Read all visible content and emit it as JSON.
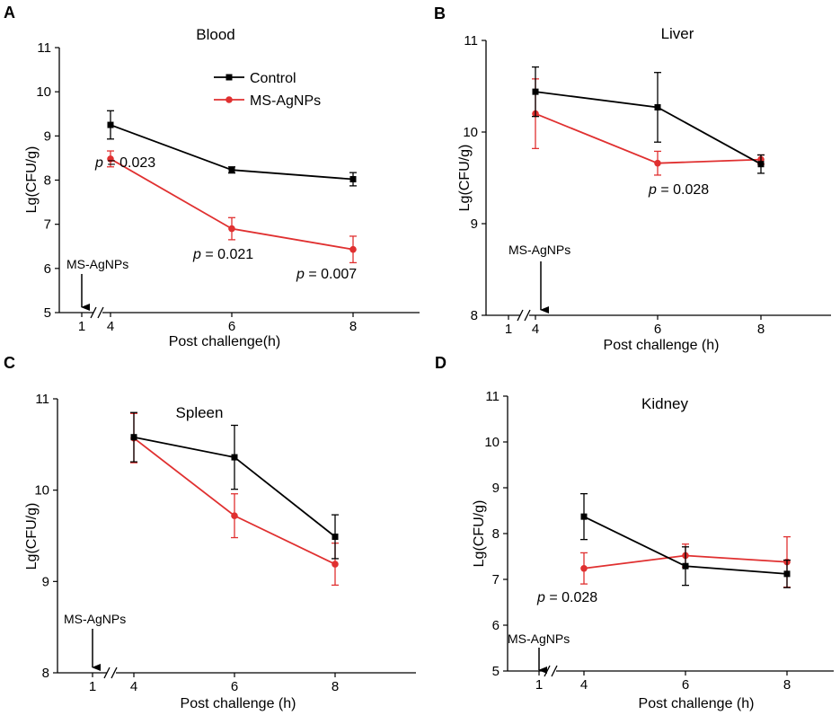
{
  "colors": {
    "control": "#000000",
    "treated": "#e03030",
    "axis": "#000000"
  },
  "legend": {
    "control": "Control",
    "treated": "MS-AgNPs"
  },
  "chart_data": [
    {
      "type": "line",
      "panel": "A",
      "title": "Blood",
      "xlabel": "Post challenge(h)",
      "ylabel": "Lg(CFU/g)",
      "ylim": [
        5,
        11
      ],
      "yticks": [
        "5",
        "6",
        "7",
        "8",
        "9",
        "10",
        "11"
      ],
      "xticks": [
        "1",
        "4",
        "6",
        "8"
      ],
      "x": [
        4,
        6,
        8
      ],
      "series": [
        {
          "name": "Control",
          "values": [
            9.25,
            8.23,
            8.02
          ],
          "errors": [
            0.32,
            0.07,
            0.15
          ]
        },
        {
          "name": "MS-AgNPs",
          "values": [
            8.48,
            6.9,
            6.43
          ],
          "errors": [
            0.18,
            0.25,
            0.3
          ]
        }
      ],
      "arrow_label": "MS-AgNPs",
      "annotations": [
        {
          "italic": "p",
          "text": " = 0.023"
        },
        {
          "italic": "p",
          "text": " = 0.021"
        },
        {
          "italic": "p",
          "text": " = 0.007"
        }
      ],
      "legend": "top-right"
    },
    {
      "type": "line",
      "panel": "B",
      "title": "Liver",
      "xlabel": "Post challenge (h)",
      "ylabel": "Lg(CFU/g)",
      "ylim": [
        8,
        11
      ],
      "yticks": [
        "8",
        "9",
        "10",
        "11"
      ],
      "xticks": [
        "1",
        "4",
        "6",
        "8"
      ],
      "x": [
        4,
        6,
        8
      ],
      "series": [
        {
          "name": "Control",
          "values": [
            10.44,
            10.27,
            9.65
          ],
          "errors": [
            0.27,
            0.38,
            0.1
          ]
        },
        {
          "name": "MS-AgNPs",
          "values": [
            10.2,
            9.66,
            9.7
          ],
          "errors": [
            0.38,
            0.13,
            0.05
          ]
        }
      ],
      "arrow_label": "MS-AgNPs",
      "annotations": [
        {
          "italic": "p",
          "text": " = 0.028"
        }
      ]
    },
    {
      "type": "line",
      "panel": "C",
      "title": "Spleen",
      "xlabel": "Post challenge (h)",
      "ylabel": "Lg(CFU/g)",
      "ylim": [
        8,
        11
      ],
      "yticks": [
        "8",
        "9",
        "10",
        "11"
      ],
      "xticks": [
        "1",
        "4",
        "6",
        "8"
      ],
      "x": [
        4,
        6,
        8
      ],
      "series": [
        {
          "name": "Control",
          "values": [
            10.58,
            10.36,
            9.49
          ],
          "errors": [
            0.27,
            0.35,
            0.24
          ]
        },
        {
          "name": "MS-AgNPs",
          "values": [
            10.57,
            9.72,
            9.19
          ],
          "errors": [
            0.27,
            0.24,
            0.23
          ]
        }
      ],
      "arrow_label": "MS-AgNPs",
      "annotations": []
    },
    {
      "type": "line",
      "panel": "D",
      "title": "Kidney",
      "xlabel": "Post challenge (h)",
      "ylabel": "Lg(CFU/g)",
      "ylim": [
        5,
        11
      ],
      "yticks": [
        "5",
        "6",
        "7",
        "8",
        "9",
        "10",
        "11"
      ],
      "xticks": [
        "1",
        "4",
        "6",
        "8"
      ],
      "x": [
        4,
        6,
        8
      ],
      "series": [
        {
          "name": "Control",
          "values": [
            8.37,
            7.29,
            7.12
          ],
          "errors": [
            0.5,
            0.42,
            0.3
          ]
        },
        {
          "name": "MS-AgNPs",
          "values": [
            7.24,
            7.52,
            7.38
          ],
          "errors": [
            0.34,
            0.25,
            0.55
          ]
        }
      ],
      "arrow_label": "MS-AgNPs",
      "annotations": [
        {
          "italic": "p",
          "text": " = 0.028"
        }
      ]
    }
  ]
}
